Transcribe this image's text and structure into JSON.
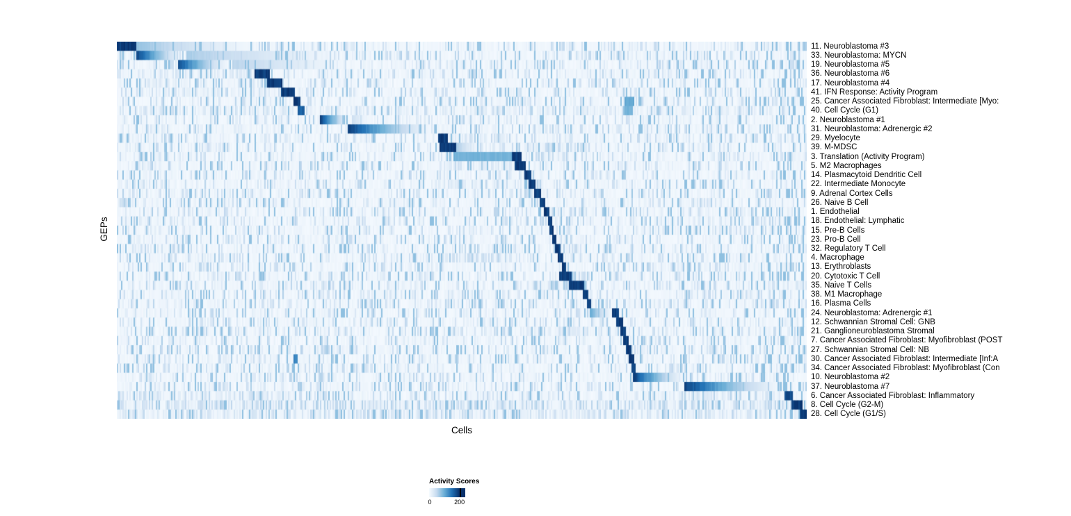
{
  "figure": {
    "y_axis_label": "GEPs",
    "x_axis_label": "Cells",
    "legend": {
      "title": "Activity Scores",
      "min_label": "0",
      "max_label": "200"
    }
  },
  "chart_data": {
    "type": "heatmap",
    "title": "",
    "xlabel": "Cells",
    "ylabel": "GEPs",
    "value_range": [
      0,
      200
    ],
    "legend_title": "Activity Scores",
    "colormap": {
      "name": "Blues",
      "stops": [
        "#f7fbff",
        "#c6dbef",
        "#6baed6",
        "#2171b5",
        "#08306b"
      ]
    },
    "encoding_note": "Each row is a GEP; cells (columns) are sorted so each GEP's high-activity cells form a diagonal block. Segments give fractional x ranges (0-1) along the cell axis; v is activity relative to max (1.0 = ~200). g = gradient fade to the right, sp = sparse speckled signal.",
    "rows": [
      {
        "label": "11. Neuroblastoma #3",
        "segments": [
          {
            "s": 0.0,
            "e": 0.028,
            "v": 1
          },
          {
            "s": 0.028,
            "e": 0.225,
            "v": 0.4,
            "g": true
          }
        ]
      },
      {
        "label": "33. Neuroblastoma: MYCN",
        "segments": [
          {
            "s": 0.028,
            "e": 0.1,
            "v": 1,
            "g": true
          },
          {
            "s": 0.1,
            "e": 0.37,
            "v": 0.35,
            "g": true
          }
        ]
      },
      {
        "label": "19. Neuroblastoma #5",
        "segments": [
          {
            "s": 0.088,
            "e": 0.168,
            "v": 0.95,
            "g": true
          },
          {
            "s": 0.168,
            "e": 0.37,
            "v": 0.3,
            "g": true
          }
        ]
      },
      {
        "label": "36. Neuroblastoma #6",
        "segments": [
          {
            "s": 0.028,
            "e": 0.2,
            "v": 0.12,
            "sp": true
          },
          {
            "s": 0.2,
            "e": 0.222,
            "v": 1
          }
        ]
      },
      {
        "label": "17. Neuroblastoma #4",
        "segments": [
          {
            "s": 0.03,
            "e": 0.218,
            "v": 0.12,
            "sp": true
          },
          {
            "s": 0.218,
            "e": 0.24,
            "v": 1
          }
        ]
      },
      {
        "label": "41. IFN Response: Activity Program",
        "segments": [
          {
            "s": 0.03,
            "e": 0.238,
            "v": 0.08,
            "sp": true
          },
          {
            "s": 0.238,
            "e": 0.258,
            "v": 1
          }
        ]
      },
      {
        "label": "25. Cancer Associated Fibroblast: Intermediate [Myo:",
        "segments": [
          {
            "s": 0.256,
            "e": 0.267,
            "v": 1
          },
          {
            "s": 0.735,
            "e": 0.75,
            "v": 0.55
          }
        ]
      },
      {
        "label": "40. Cell Cycle (G1)",
        "segments": [
          {
            "s": 0.263,
            "e": 0.272,
            "v": 0.85
          },
          {
            "s": 0.03,
            "e": 0.95,
            "v": 0.1,
            "sp": true
          },
          {
            "s": 0.735,
            "e": 0.748,
            "v": 0.5
          }
        ]
      },
      {
        "label": "2. Neuroblastoma #1",
        "segments": [
          {
            "s": 0.295,
            "e": 0.34,
            "v": 1,
            "g": true
          },
          {
            "s": 0.34,
            "e": 0.37,
            "v": 0.25,
            "g": true
          }
        ]
      },
      {
        "label": "31. Neuroblastoma: Adrenergic #2",
        "segments": [
          {
            "s": 0.335,
            "e": 0.465,
            "v": 1,
            "g": true
          }
        ]
      },
      {
        "label": "29. Myelocyte",
        "segments": [
          {
            "s": 0.465,
            "e": 0.479,
            "v": 1
          },
          {
            "s": 0.479,
            "e": 0.56,
            "v": 0.12,
            "sp": true
          }
        ]
      },
      {
        "label": "39. M-MDSC",
        "segments": [
          {
            "s": 0.468,
            "e": 0.492,
            "v": 1
          },
          {
            "s": 0.492,
            "e": 0.53,
            "v": 0.35,
            "g": true
          },
          {
            "s": 0.6,
            "e": 0.68,
            "v": 0.3,
            "sp": true
          }
        ]
      },
      {
        "label": "3. Translation (Activity Program)",
        "segments": [
          {
            "s": 0.487,
            "e": 0.572,
            "v": 0.5
          },
          {
            "s": 0.572,
            "e": 0.586,
            "v": 1
          },
          {
            "s": 0.6,
            "e": 0.645,
            "v": 0.2,
            "sp": true
          }
        ]
      },
      {
        "label": "5. M2 Macrophages",
        "segments": [
          {
            "s": 0.46,
            "e": 0.577,
            "v": 0.12,
            "sp": true
          },
          {
            "s": 0.577,
            "e": 0.593,
            "v": 1
          }
        ]
      },
      {
        "label": "14. Plasmacytoid Dendritic Cell",
        "segments": [
          {
            "s": 0.591,
            "e": 0.601,
            "v": 1
          }
        ]
      },
      {
        "label": "22. Intermediate Monocyte",
        "segments": [
          {
            "s": 0.46,
            "e": 0.59,
            "v": 0.1,
            "sp": true
          },
          {
            "s": 0.597,
            "e": 0.606,
            "v": 1
          }
        ]
      },
      {
        "label": "9. Adrenal Cortex Cells",
        "segments": [
          {
            "s": 0.58,
            "e": 0.604,
            "v": 0.2,
            "sp": true
          },
          {
            "s": 0.604,
            "e": 0.615,
            "v": 1
          }
        ]
      },
      {
        "label": "26. Naive B Cell",
        "segments": [
          {
            "s": 0.612,
            "e": 0.621,
            "v": 1
          }
        ]
      },
      {
        "label": "1. Endothelial",
        "segments": [
          {
            "s": 0.618,
            "e": 0.627,
            "v": 1
          }
        ]
      },
      {
        "label": "18. Endothelial: Lymphatic",
        "segments": [
          {
            "s": 0.625,
            "e": 0.631,
            "v": 1
          }
        ]
      },
      {
        "label": "15. Pre-B Cells",
        "segments": [
          {
            "s": 0.628,
            "e": 0.634,
            "v": 1
          }
        ]
      },
      {
        "label": "23. Pro-B Cell",
        "segments": [
          {
            "s": 0.631,
            "e": 0.638,
            "v": 1
          }
        ]
      },
      {
        "label": "32. Regulatory T Cell",
        "segments": [
          {
            "s": 0.635,
            "e": 0.643,
            "v": 1
          },
          {
            "s": 0.643,
            "e": 0.68,
            "v": 0.22,
            "sp": true
          }
        ]
      },
      {
        "label": "4. Macrophage",
        "segments": [
          {
            "s": 0.46,
            "e": 0.58,
            "v": 0.18,
            "sp": true
          },
          {
            "s": 0.64,
            "e": 0.648,
            "v": 1
          }
        ]
      },
      {
        "label": "13. Erythroblasts",
        "segments": [
          {
            "s": 0.645,
            "e": 0.652,
            "v": 1
          }
        ]
      },
      {
        "label": "20. Cytotoxic T Cell",
        "segments": [
          {
            "s": 0.642,
            "e": 0.659,
            "v": 1
          },
          {
            "s": 0.659,
            "e": 0.685,
            "v": 0.3,
            "sp": true
          }
        ]
      },
      {
        "label": "35. Naive T Cells",
        "segments": [
          {
            "s": 0.6,
            "e": 0.655,
            "v": 0.25,
            "sp": true
          },
          {
            "s": 0.655,
            "e": 0.678,
            "v": 1
          }
        ]
      },
      {
        "label": "38. M1 Macrophage",
        "segments": [
          {
            "s": 0.676,
            "e": 0.683,
            "v": 1
          }
        ]
      },
      {
        "label": "16. Plasma Cells",
        "segments": [
          {
            "s": 0.681,
            "e": 0.688,
            "v": 1
          }
        ]
      },
      {
        "label": "24. Neuroblastoma: Adrenergic #1",
        "segments": [
          {
            "s": 0.686,
            "e": 0.722,
            "v": 0.55,
            "g": true
          },
          {
            "s": 0.718,
            "e": 0.727,
            "v": 1
          }
        ]
      },
      {
        "label": "12. Schwannian Stromal Cell: GNB",
        "segments": [
          {
            "s": 0.724,
            "e": 0.734,
            "v": 1
          }
        ]
      },
      {
        "label": "21. Ganglioneuroblastoma Stromal",
        "segments": [
          {
            "s": 0.57,
            "e": 0.72,
            "v": 0.1,
            "sp": true
          },
          {
            "s": 0.729,
            "e": 0.738,
            "v": 1
          }
        ]
      },
      {
        "label": "7. Cancer Associated Fibroblast: Myofibroblast (POST",
        "segments": [
          {
            "s": 0.734,
            "e": 0.742,
            "v": 1
          }
        ]
      },
      {
        "label": "27. Schwannian Stromal Cell: NB",
        "segments": [
          {
            "s": 0.738,
            "e": 0.746,
            "v": 1
          }
        ]
      },
      {
        "label": "30. Cancer Associated Fibroblast: Intermediate [Inf:A",
        "segments": [
          {
            "s": 0.257,
            "e": 0.263,
            "v": 0.7
          },
          {
            "s": 0.742,
            "e": 0.749,
            "v": 1
          }
        ]
      },
      {
        "label": "34. Cancer Associated Fibroblast: Myofibroblast (Con",
        "segments": [
          {
            "s": 0.745,
            "e": 0.752,
            "v": 1
          }
        ]
      },
      {
        "label": "10. Neuroblastoma #2",
        "segments": [
          {
            "s": 0.748,
            "e": 0.828,
            "v": 1,
            "g": true
          }
        ]
      },
      {
        "label": "37. Neuroblastoma #7",
        "segments": [
          {
            "s": 0.823,
            "e": 0.972,
            "v": 1,
            "g": true
          }
        ]
      },
      {
        "label": "6. Cancer Associated Fibroblast: Inflammatory",
        "segments": [
          {
            "s": 0.0,
            "e": 0.26,
            "v": 0.1,
            "sp": true
          },
          {
            "s": 0.75,
            "e": 0.968,
            "v": 0.12,
            "sp": true
          },
          {
            "s": 0.968,
            "e": 0.979,
            "v": 0.95
          }
        ]
      },
      {
        "label": "8. Cell Cycle (G2-M)",
        "segments": [
          {
            "s": 0.0,
            "e": 0.978,
            "v": 0.22,
            "sp": true
          },
          {
            "s": 0.978,
            "e": 0.993,
            "v": 1
          }
        ]
      },
      {
        "label": "28. Cell Cycle (G1/S)",
        "segments": [
          {
            "s": 0.0,
            "e": 0.99,
            "v": 0.15,
            "sp": true
          },
          {
            "s": 0.99,
            "e": 1.0,
            "v": 1
          }
        ]
      }
    ]
  }
}
